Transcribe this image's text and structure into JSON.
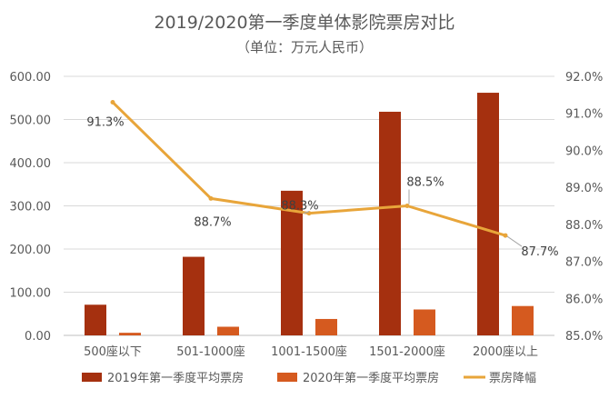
{
  "chart_data": {
    "type": "bar",
    "title": "2019/2020第一季度单体影院票房对比",
    "subtitle": "（单位：万元人民币）",
    "categories": [
      "500座以下",
      "501-1000座",
      "1001-1500座",
      "1501-2000座",
      "2000座以上"
    ],
    "series": [
      {
        "name": "2019年第一季度平均票房",
        "type": "bar",
        "axis": "left",
        "color": "#A5300F",
        "values": [
          71,
          182,
          335,
          518,
          562
        ]
      },
      {
        "name": "2020年第一季度平均票房",
        "type": "bar",
        "axis": "left",
        "color": "#D55A1F",
        "values": [
          6,
          20,
          38,
          60,
          68
        ]
      },
      {
        "name": "票房降幅",
        "type": "line",
        "axis": "right",
        "color": "#E8A53A",
        "values": [
          91.3,
          88.7,
          88.3,
          88.5,
          87.7
        ]
      }
    ],
    "data_labels": [
      "91.3%",
      "88.7%",
      "88.3%",
      "88.5%",
      "87.7%"
    ],
    "y_left": {
      "min": 0,
      "max": 600,
      "ticks": [
        "0.00",
        "100.00",
        "200.00",
        "300.00",
        "400.00",
        "500.00",
        "600.00"
      ]
    },
    "y_right": {
      "min": 85,
      "max": 92,
      "ticks": [
        "85.0%",
        "86.0%",
        "87.0%",
        "88.0%",
        "89.0%",
        "90.0%",
        "91.0%",
        "92.0%"
      ]
    },
    "grid": true,
    "legend_position": "bottom"
  }
}
